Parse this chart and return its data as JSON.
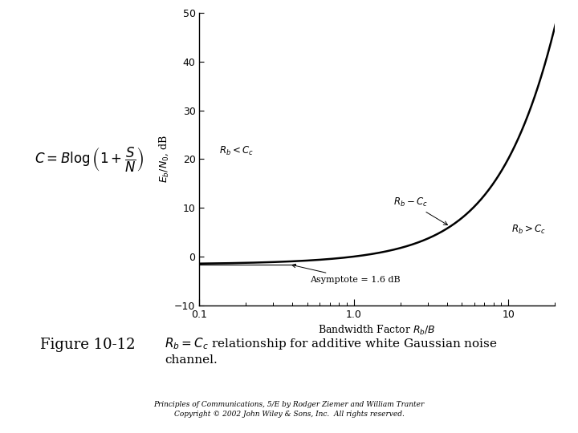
{
  "xlabel": "Bandwidth Factor $R_{b}/B$",
  "ylabel": "$E_b/N_0$, dB",
  "ylim": [
    -10,
    50
  ],
  "yticks": [
    -10,
    0,
    10,
    20,
    30,
    40,
    50
  ],
  "asymptote_label": "Asymptote = 1.6 dB",
  "annotation_rb_cc": "$R_b - C_c$",
  "annotation_rb_lt_cc": "$R_b < C_c$",
  "annotation_rb_gt_cc": "$R_b > C_c$",
  "formula": "$C = B\\log\\left(1 + \\dfrac{S}{N}\\right)$",
  "fig10_label": "Figure 10-12",
  "caption": "$R_b = C_c$ relationship for additive white Gaussian noise\nchannel.",
  "copyright_line1": "Principles of Communications, 5/E by Rodger Ziemer and William Tranter",
  "copyright_line2": "Copyright © 2002 John Wiley & Sons, Inc.  All rights reserved.",
  "line_color": "#000000",
  "bg_color": "#ffffff",
  "text_color": "#000000"
}
